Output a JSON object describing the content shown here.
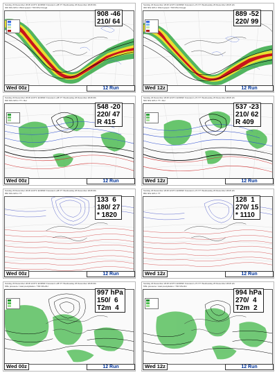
{
  "panels": [
    {
      "header": [
        "Sunday 23 December 2018 12UTC ECMWF  Forecast t+48 VT: Wednesday 26 December 2018 00UTC",
        "300 hPa GPH / Wind speed / 700 hPa Omega"
      ],
      "legend": [
        {
          "label": "",
          "color": "#3a66e0"
        },
        {
          "label": "",
          "color": "#7db8f0"
        },
        {
          "label": "",
          "color": "#c7e5a8"
        },
        {
          "label": "",
          "color": "#b01414"
        }
      ],
      "values": [
        "908 -46",
        "210/ 64"
      ],
      "time_label": "Wed 00z",
      "run_label": "12 Run"
    },
    {
      "header": [
        "Sunday 23 December 2018 12UTC ECMWF  Forecast t+72 VT: Wednesday 26 December 2018 12UTC",
        "300 hPa GPH / Wind speed / 700 hPa Omega"
      ],
      "legend": [
        {
          "label": "",
          "color": "#3a66e0"
        },
        {
          "label": "",
          "color": "#7db8f0"
        },
        {
          "label": "",
          "color": "#c7e5a8"
        },
        {
          "label": "",
          "color": "#b01414"
        }
      ],
      "values": [
        "889 -52",
        "220/ 99"
      ],
      "time_label": "Wed 12z",
      "run_label": "12 Run"
    },
    {
      "header": [
        "Sunday 23 December 2018 12UTC ECMWF  Forecast t+48 VT: Wednesday 26 December 2018 00UTC",
        "500 hPa GPH / TT / Rel"
      ],
      "legend": [
        {
          "label": "",
          "color": "#2f9e3a"
        },
        {
          "label": "",
          "color": "#6cc46a"
        },
        {
          "label": "",
          "color": "#a8e09a"
        }
      ],
      "values": [
        "548 -20",
        "220/ 47",
        "R 415"
      ],
      "time_label": "Wed 00z",
      "run_label": "12 Run"
    },
    {
      "header": [
        "Sunday 23 December 2018 12UTC ECMWF  Forecast t+72 VT: Wednesday 26 December 2018 12UTC",
        "500 hPa GPH / TT / Rel"
      ],
      "legend": [
        {
          "label": "",
          "color": "#2f9e3a"
        },
        {
          "label": "",
          "color": "#6cc46a"
        },
        {
          "label": "",
          "color": "#a8e09a"
        }
      ],
      "values": [
        "537 -23",
        "210/ 62",
        "R 409"
      ],
      "time_label": "Wed 12z",
      "run_label": "12 Run"
    },
    {
      "header": [
        "Sunday 23 December 2018 12UTC ECMWF  Forecast t+48 VT: Wednesday 26 December 2018 00UTC",
        "850 hPa GPH / TT"
      ],
      "legend": [],
      "values": [
        "133  6",
        "180/ 27",
        "* 1820"
      ],
      "time_label": "Wed 00z",
      "run_label": "12 Run"
    },
    {
      "header": [
        "Sunday 23 December 2018 12UTC ECMWF  Forecast t+72 VT: Wednesday 26 December 2018 12UTC",
        "850 hPa GPH / TT"
      ],
      "legend": [],
      "values": [
        "128  1",
        "270/ 15",
        "* 1110"
      ],
      "time_label": "Wed 12z",
      "run_label": "12 Run"
    },
    {
      "header": [
        "Sunday 23 December 2018 12UTC ECMWF  Forecast t+48 VT: Wednesday 26 December 2018 00UTC",
        "MSL pressure / total precipitation / 700 hPa RH"
      ],
      "legend": [
        {
          "label": "",
          "color": "#1f8f2c"
        },
        {
          "label": "",
          "color": "#4fbf4f"
        },
        {
          "label": "",
          "color": "#9be08f"
        }
      ],
      "values": [
        "997 hPa",
        "150/  6",
        "T2m  4"
      ],
      "time_label": "Wed 00z",
      "run_label": "12 Run"
    },
    {
      "header": [
        "Sunday 23 December 2018 12UTC ECMWF  Forecast t+72 VT: Wednesday 26 December 2018 12UTC",
        "MSL pressure / total precipitation / 700 hPa RH"
      ],
      "legend": [
        {
          "label": "",
          "color": "#1f8f2c"
        },
        {
          "label": "",
          "color": "#4fbf4f"
        },
        {
          "label": "",
          "color": "#9be08f"
        }
      ],
      "values": [
        "994 hPa",
        "270/  4",
        "T2m  2"
      ],
      "time_label": "Wed 12z",
      "run_label": "12 Run"
    }
  ],
  "colors": {
    "jet_core": "#c8141c",
    "jet_mid": "#e8e030",
    "jet_outer": "#34a844",
    "omega": "#3050d0",
    "humid": "#44b84a",
    "warm_isotherm": "#d03030",
    "cold_isotherm": "#3040c0",
    "run_label": "#003399"
  }
}
